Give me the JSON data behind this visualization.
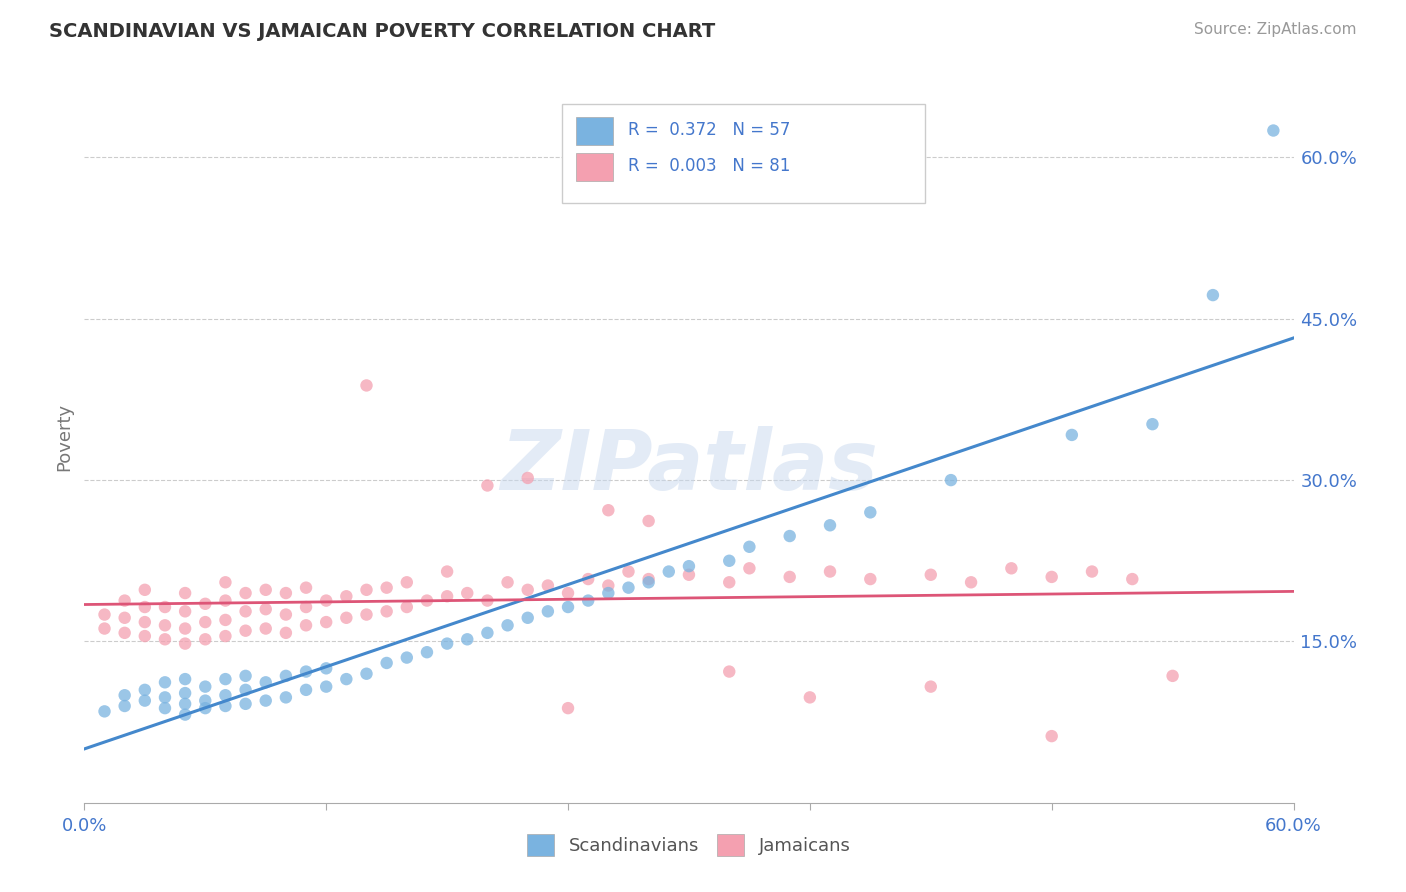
{
  "title": "SCANDINAVIAN VS JAMAICAN POVERTY CORRELATION CHART",
  "source_text": "Source: ZipAtlas.com",
  "ylabel": "Poverty",
  "xlim": [
    0.0,
    0.6
  ],
  "ylim": [
    0.0,
    0.68
  ],
  "xtick_positions": [
    0.0,
    0.12,
    0.24,
    0.36,
    0.48,
    0.6
  ],
  "xticklabels": [
    "0.0%",
    "",
    "",
    "",
    "",
    "60.0%"
  ],
  "ytick_positions": [
    0.15,
    0.3,
    0.45,
    0.6
  ],
  "yticklabels": [
    "15.0%",
    "30.0%",
    "45.0%",
    "60.0%"
  ],
  "grid_color": "#cccccc",
  "background_color": "#ffffff",
  "scandinavian_color": "#7ab3e0",
  "jamaican_color": "#f4a0b0",
  "trend_blue": "#4488cc",
  "trend_pink": "#dd5577",
  "R_scand": "0.372",
  "N_scand": "57",
  "R_jamai": "0.003",
  "N_jamai": "81",
  "watermark": "ZIPatlas",
  "scand_x": [
    0.01,
    0.02,
    0.02,
    0.03,
    0.03,
    0.04,
    0.04,
    0.04,
    0.05,
    0.05,
    0.05,
    0.05,
    0.06,
    0.06,
    0.06,
    0.07,
    0.07,
    0.07,
    0.08,
    0.08,
    0.08,
    0.09,
    0.09,
    0.1,
    0.1,
    0.11,
    0.11,
    0.12,
    0.12,
    0.13,
    0.14,
    0.15,
    0.16,
    0.17,
    0.18,
    0.19,
    0.2,
    0.21,
    0.22,
    0.23,
    0.24,
    0.25,
    0.26,
    0.27,
    0.28,
    0.29,
    0.3,
    0.32,
    0.33,
    0.35,
    0.37,
    0.39,
    0.43,
    0.49,
    0.53,
    0.56,
    0.59
  ],
  "scand_y": [
    0.085,
    0.09,
    0.1,
    0.095,
    0.105,
    0.088,
    0.098,
    0.112,
    0.082,
    0.092,
    0.102,
    0.115,
    0.088,
    0.095,
    0.108,
    0.09,
    0.1,
    0.115,
    0.092,
    0.105,
    0.118,
    0.095,
    0.112,
    0.098,
    0.118,
    0.105,
    0.122,
    0.108,
    0.125,
    0.115,
    0.12,
    0.13,
    0.135,
    0.14,
    0.148,
    0.152,
    0.158,
    0.165,
    0.172,
    0.178,
    0.182,
    0.188,
    0.195,
    0.2,
    0.205,
    0.215,
    0.22,
    0.225,
    0.238,
    0.248,
    0.258,
    0.27,
    0.3,
    0.342,
    0.352,
    0.472,
    0.625
  ],
  "jamai_x": [
    0.01,
    0.01,
    0.02,
    0.02,
    0.02,
    0.03,
    0.03,
    0.03,
    0.03,
    0.04,
    0.04,
    0.04,
    0.05,
    0.05,
    0.05,
    0.05,
    0.06,
    0.06,
    0.06,
    0.07,
    0.07,
    0.07,
    0.07,
    0.08,
    0.08,
    0.08,
    0.09,
    0.09,
    0.09,
    0.1,
    0.1,
    0.1,
    0.11,
    0.11,
    0.11,
    0.12,
    0.12,
    0.13,
    0.13,
    0.14,
    0.14,
    0.15,
    0.15,
    0.16,
    0.16,
    0.17,
    0.18,
    0.18,
    0.19,
    0.2,
    0.21,
    0.22,
    0.23,
    0.24,
    0.25,
    0.26,
    0.27,
    0.28,
    0.3,
    0.32,
    0.33,
    0.35,
    0.37,
    0.39,
    0.42,
    0.44,
    0.46,
    0.48,
    0.5,
    0.52,
    0.14,
    0.2,
    0.22,
    0.24,
    0.26,
    0.28,
    0.32,
    0.36,
    0.42,
    0.48,
    0.54
  ],
  "jamai_y": [
    0.162,
    0.175,
    0.158,
    0.172,
    0.188,
    0.155,
    0.168,
    0.182,
    0.198,
    0.152,
    0.165,
    0.182,
    0.148,
    0.162,
    0.178,
    0.195,
    0.152,
    0.168,
    0.185,
    0.155,
    0.17,
    0.188,
    0.205,
    0.16,
    0.178,
    0.195,
    0.162,
    0.18,
    0.198,
    0.158,
    0.175,
    0.195,
    0.165,
    0.182,
    0.2,
    0.168,
    0.188,
    0.172,
    0.192,
    0.175,
    0.198,
    0.178,
    0.2,
    0.182,
    0.205,
    0.188,
    0.192,
    0.215,
    0.195,
    0.188,
    0.205,
    0.198,
    0.202,
    0.195,
    0.208,
    0.202,
    0.215,
    0.208,
    0.212,
    0.205,
    0.218,
    0.21,
    0.215,
    0.208,
    0.212,
    0.205,
    0.218,
    0.21,
    0.215,
    0.208,
    0.388,
    0.295,
    0.302,
    0.088,
    0.272,
    0.262,
    0.122,
    0.098,
    0.108,
    0.062,
    0.118
  ]
}
